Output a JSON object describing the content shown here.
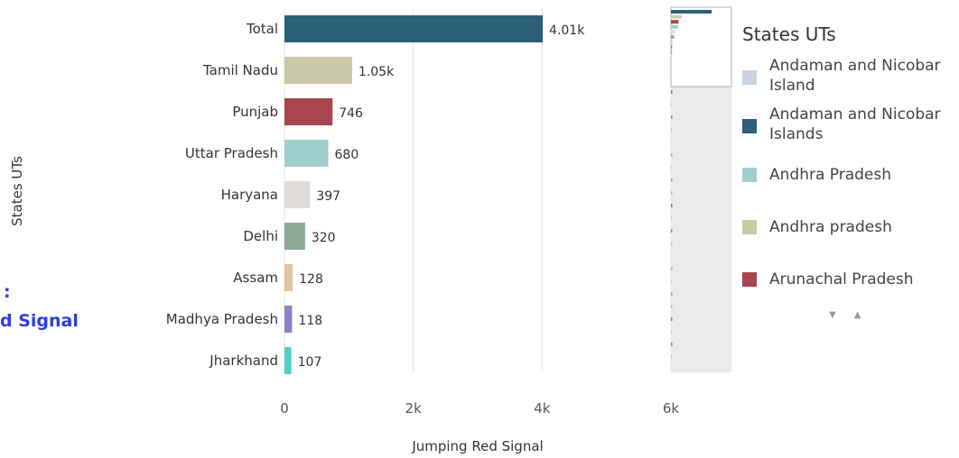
{
  "chart_data": {
    "type": "bar",
    "orientation": "horizontal",
    "categories": [
      "Total",
      "Tamil Nadu",
      "Punjab",
      "Uttar Pradesh",
      "Haryana",
      "Delhi",
      "Assam",
      "Madhya Pradesh",
      "Jharkhand"
    ],
    "values": [
      4010,
      1050,
      746,
      680,
      397,
      320,
      128,
      118,
      107
    ],
    "value_labels": [
      "4.01k",
      "1.05k",
      "746",
      "680",
      "397",
      "320",
      "128",
      "118",
      "107"
    ],
    "colors": [
      "#2b5f7a",
      "#c8c8a6",
      "#a8454e",
      "#9fcfcc",
      "#dedbd8",
      "#8aa996",
      "#e0c49a",
      "#8a82c9",
      "#4fcfc6"
    ],
    "xlabel": "Jumping Red Signal",
    "ylabel": "States UTs",
    "xlim": [
      0,
      6000
    ],
    "xticks": [
      "0",
      "2k",
      "4k",
      "6k"
    ],
    "grid": true,
    "legend": {
      "title": "States UTs",
      "placement": "right",
      "items": [
        {
          "label": "Andaman and Nicobar Island",
          "color": "#c9d3e0"
        },
        {
          "label": "Andaman and Nicobar Islands",
          "color": "#2b5f7a"
        },
        {
          "label": "Andhra Pradesh",
          "color": "#9fcfcc"
        },
        {
          "label": "Andhra pradesh",
          "color": "#c8c8a6"
        },
        {
          "label": "Arunachal Pradesh",
          "color": "#a8454e"
        }
      ]
    }
  },
  "side_text": {
    "line1": ":",
    "line2": "d Signal"
  },
  "pager": {
    "down": "▼",
    "up": "▲"
  }
}
